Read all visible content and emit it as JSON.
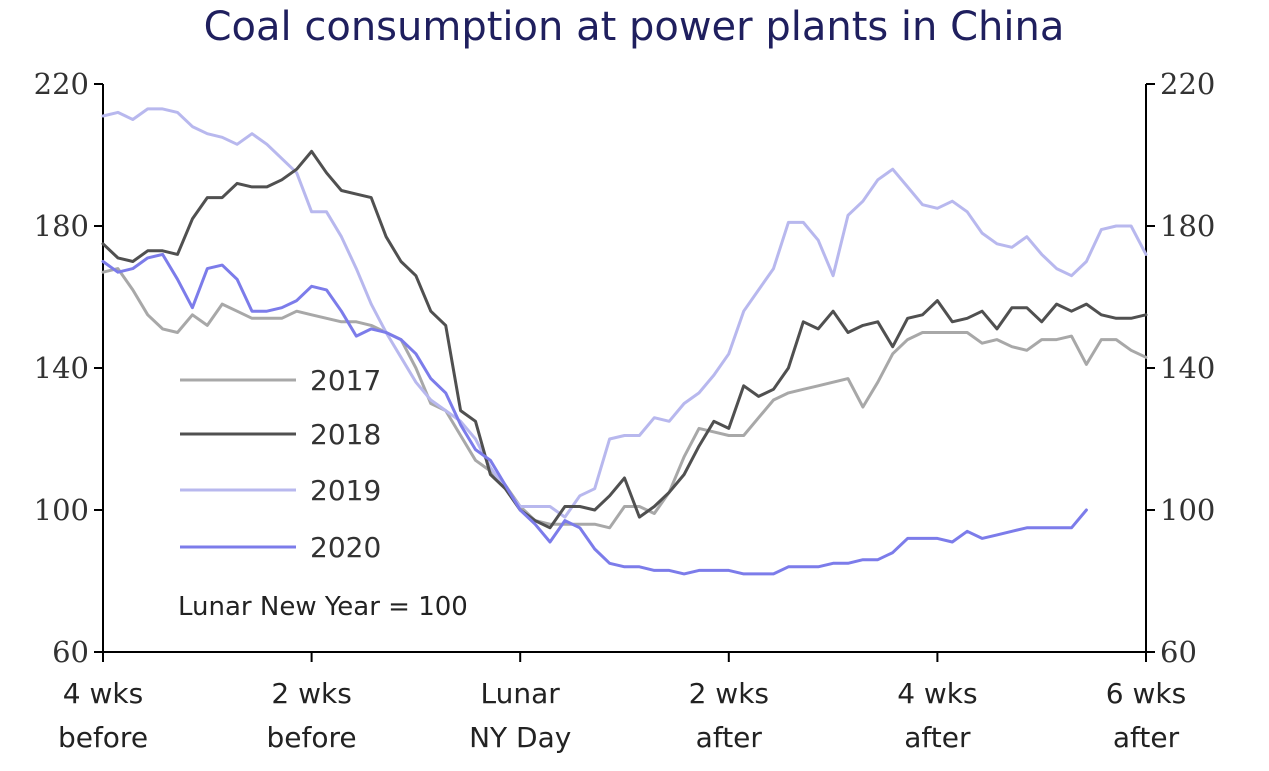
{
  "chart_data": {
    "type": "line",
    "title": "Coal consumption at power plants in China",
    "annotation": "Lunar New Year = 100",
    "xlabel": "",
    "ylabel": "",
    "ylim": [
      60,
      220
    ],
    "xlim": [
      -28,
      42
    ],
    "y_ticks": [
      "220",
      "180",
      "140",
      "100",
      "60"
    ],
    "y_tick_values": [
      220,
      180,
      140,
      100,
      60
    ],
    "x_ticks": [
      {
        "value": -28,
        "line1": "4 wks",
        "line2": "before"
      },
      {
        "value": -14,
        "line1": "2 wks",
        "line2": "before"
      },
      {
        "value": 0,
        "line1": "Lunar",
        "line2": "NY Day"
      },
      {
        "value": 14,
        "line1": "2 wks",
        "line2": "after"
      },
      {
        "value": 28,
        "line1": "4 wks",
        "line2": "after"
      },
      {
        "value": 42,
        "line1": "6 wks",
        "line2": "after"
      }
    ],
    "colors": {
      "title": "#1f1f5e",
      "axis": "#000000"
    },
    "series": [
      {
        "name": "2017",
        "color": "#a8a8a8",
        "x": [
          -28,
          -27,
          -26,
          -25,
          -24,
          -23,
          -22,
          -21,
          -20,
          -19,
          -18,
          -17,
          -16,
          -15,
          -14,
          -13,
          -12,
          -11,
          -10,
          -9,
          -8,
          -7,
          -6,
          -5,
          -4,
          -3,
          -2,
          -1,
          0,
          1,
          2,
          3,
          4,
          5,
          6,
          7,
          8,
          9,
          10,
          11,
          12,
          13,
          14,
          15,
          16,
          17,
          18,
          19,
          20,
          21,
          22,
          23,
          24,
          25,
          26,
          27,
          28,
          29,
          30,
          31,
          32,
          33,
          34,
          35,
          36,
          37,
          38,
          39,
          40,
          41,
          42
        ],
        "values": [
          167,
          168,
          162,
          155,
          151,
          150,
          155,
          152,
          158,
          156,
          154,
          154,
          154,
          156,
          155,
          154,
          153,
          153,
          152,
          150,
          148,
          140,
          130,
          128,
          121,
          114,
          111,
          107,
          101,
          97,
          96,
          96,
          96,
          96,
          95,
          101,
          101,
          99,
          105,
          115,
          123,
          122,
          121,
          121,
          126,
          131,
          133,
          134,
          135,
          136,
          137,
          129,
          136,
          144,
          148,
          150,
          150,
          150,
          150,
          147,
          148,
          146,
          145,
          148,
          148,
          149,
          141,
          148,
          148,
          145,
          143
        ]
      },
      {
        "name": "2018",
        "color": "#505050",
        "x": [
          -28,
          -27,
          -26,
          -25,
          -24,
          -23,
          -22,
          -21,
          -20,
          -19,
          -18,
          -17,
          -16,
          -15,
          -14,
          -13,
          -12,
          -11,
          -10,
          -9,
          -8,
          -7,
          -6,
          -5,
          -4,
          -3,
          -2,
          -1,
          0,
          1,
          2,
          3,
          4,
          5,
          6,
          7,
          8,
          9,
          10,
          11,
          12,
          13,
          14,
          15,
          16,
          17,
          18,
          19,
          20,
          21,
          22,
          23,
          24,
          25,
          26,
          27,
          28,
          29,
          30,
          31,
          32,
          33,
          34,
          35,
          36,
          37,
          38,
          39,
          40,
          41,
          42
        ],
        "values": [
          175,
          171,
          170,
          173,
          173,
          172,
          182,
          188,
          188,
          192,
          191,
          191,
          193,
          196,
          201,
          195,
          190,
          189,
          188,
          177,
          170,
          166,
          156,
          152,
          128,
          125,
          110,
          106,
          100,
          97,
          95,
          101,
          101,
          100,
          104,
          109,
          98,
          101,
          105,
          110,
          118,
          125,
          123,
          135,
          132,
          134,
          140,
          153,
          151,
          156,
          150,
          152,
          153,
          146,
          154,
          155,
          159,
          153,
          154,
          156,
          151,
          157,
          157,
          153,
          158,
          156,
          158,
          155,
          154,
          154,
          155
        ]
      },
      {
        "name": "2019",
        "color": "#b8b8ee",
        "x": [
          -28,
          -27,
          -26,
          -25,
          -24,
          -23,
          -22,
          -21,
          -20,
          -19,
          -18,
          -17,
          -16,
          -15,
          -14,
          -13,
          -12,
          -11,
          -10,
          -9,
          -8,
          -7,
          -6,
          -5,
          -4,
          -3,
          -2,
          -1,
          0,
          1,
          2,
          3,
          4,
          5,
          6,
          7,
          8,
          9,
          10,
          11,
          12,
          13,
          14,
          15,
          16,
          17,
          18,
          19,
          20,
          21,
          22,
          23,
          24,
          25,
          26,
          27,
          28,
          29,
          30,
          31,
          32,
          33,
          34,
          35,
          36,
          37,
          38,
          39,
          40,
          41,
          42
        ],
        "values": [
          211,
          212,
          210,
          213,
          213,
          212,
          208,
          206,
          205,
          203,
          206,
          203,
          199,
          195,
          184,
          184,
          177,
          168,
          158,
          150,
          143,
          136,
          131,
          128,
          125,
          120,
          112,
          106,
          101,
          101,
          101,
          98,
          104,
          106,
          120,
          121,
          121,
          126,
          125,
          130,
          133,
          138,
          144,
          156,
          162,
          168,
          181,
          181,
          176,
          166,
          183,
          187,
          193,
          196,
          191,
          186,
          185,
          187,
          184,
          178,
          175,
          174,
          177,
          172,
          168,
          166,
          170,
          179,
          180,
          180,
          172
        ]
      },
      {
        "name": "2020",
        "color": "#7c7cea",
        "x": [
          -28,
          -27,
          -26,
          -25,
          -24,
          -23,
          -22,
          -21,
          -20,
          -19,
          -18,
          -17,
          -16,
          -15,
          -14,
          -13,
          -12,
          -11,
          -10,
          -9,
          -8,
          -7,
          -6,
          -5,
          -4,
          -3,
          -2,
          -1,
          0,
          1,
          2,
          3,
          4,
          5,
          6,
          7,
          8,
          9,
          10,
          11,
          12,
          13,
          14,
          15,
          16,
          17,
          18,
          19,
          20,
          21,
          22,
          23,
          24,
          25,
          26,
          27,
          28,
          29,
          30,
          31,
          32,
          33,
          34,
          35,
          36,
          37,
          38
        ],
        "values": [
          170,
          167,
          168,
          171,
          172,
          165,
          157,
          168,
          169,
          165,
          156,
          156,
          157,
          159,
          163,
          162,
          156,
          149,
          151,
          150,
          148,
          144,
          137,
          133,
          124,
          117,
          114,
          107,
          100,
          96,
          91,
          97,
          95,
          89,
          85,
          84,
          84,
          83,
          83,
          82,
          83,
          83,
          83,
          82,
          82,
          82,
          84,
          84,
          84,
          85,
          85,
          86,
          86,
          88,
          92,
          92,
          92,
          91,
          94,
          92,
          93,
          94,
          95,
          95,
          95,
          95,
          100
        ]
      }
    ]
  }
}
